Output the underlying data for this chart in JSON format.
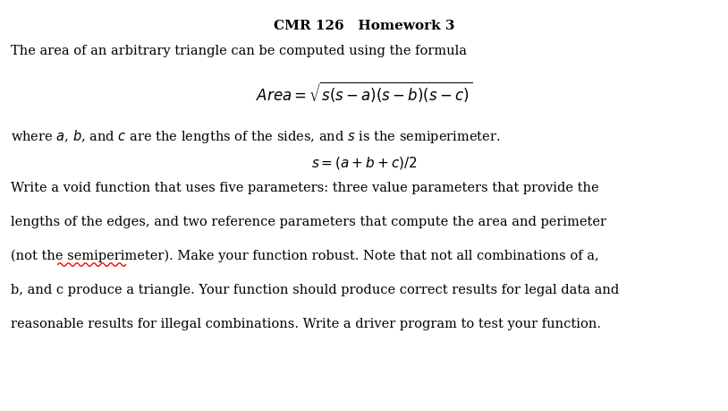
{
  "title": "CMR 126   Homework 3",
  "title_fontsize": 11,
  "bg_color": "#ffffff",
  "text_color": "#000000",
  "body_fontsize": 10.5,
  "formula_fontsize": 12,
  "formula2_fontsize": 11,
  "line1": "The area of an arbitrary triangle can be computed using the formula",
  "formula1": "$\\mathit{Area} = \\sqrt{s(s-a)(s-b)(s-c)}$",
  "line2_parts": [
    [
      "where ",
      false
    ],
    [
      "a",
      true
    ],
    [
      ", ",
      false
    ],
    [
      "b",
      true
    ],
    [
      ", and ",
      false
    ],
    [
      "c",
      true
    ],
    [
      " are the lengths of the sides, and ",
      false
    ],
    [
      "s",
      true
    ],
    [
      " is the semiperimeter.",
      false
    ]
  ],
  "formula2": "$\\mathit{s} = (\\mathit{a} + \\mathit{b} + \\mathit{c})/2$",
  "body_lines": [
    "Write a void function that uses five parameters: three value parameters that provide the",
    "lengths of the edges, and two reference parameters that compute the area and perimeter",
    "(not the semiperimeter). Make your function robust. Note that not all combinations of a,",
    "b, and c produce a triangle. Your function should produce correct results for legal data and",
    "reasonable results for illegal combinations. Write a driver program to test your function."
  ],
  "underline_word": "semiperimeter",
  "underline_line_idx": 2,
  "underline_prefix": "(not the ",
  "underline_color": "red"
}
